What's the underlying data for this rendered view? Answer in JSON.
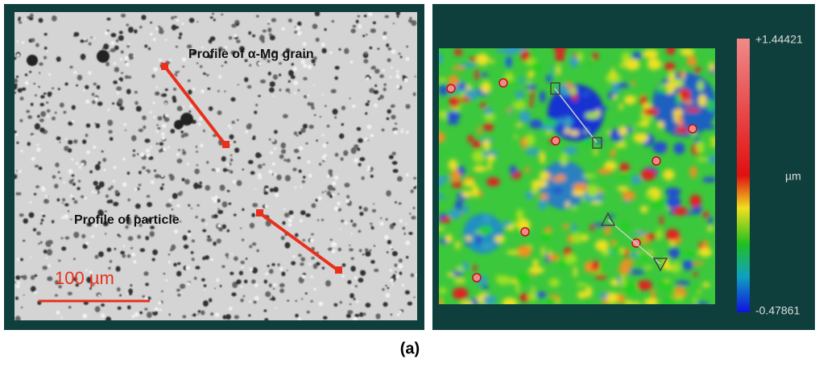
{
  "left_panel": {
    "label_grain": "Profile of α-Mg grain",
    "label_particle": "Profile of particle",
    "scale_bar": "100 µm"
  },
  "right_panel": {
    "colorbar_max": "+1.44421",
    "colorbar_unit": "µm",
    "colorbar_min": "-0.47861"
  },
  "caption": "(a)"
}
